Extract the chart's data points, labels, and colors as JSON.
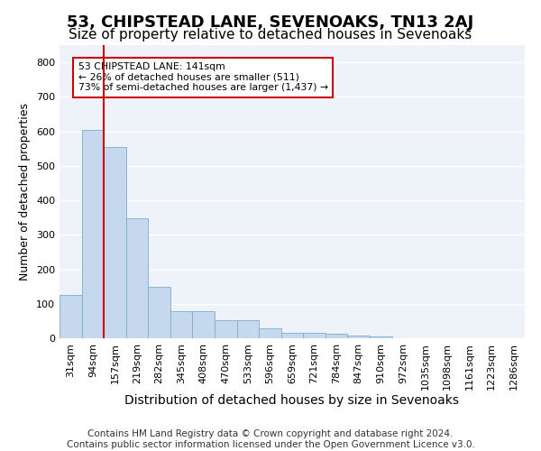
{
  "title": "53, CHIPSTEAD LANE, SEVENOAKS, TN13 2AJ",
  "subtitle": "Size of property relative to detached houses in Sevenoaks",
  "xlabel": "Distribution of detached houses by size in Sevenoaks",
  "ylabel": "Number of detached properties",
  "bar_color": "#c5d8ed",
  "bar_edge_color": "#7aaed0",
  "bar_heights": [
    125,
    605,
    555,
    347,
    148,
    78,
    78,
    52,
    52,
    30,
    15,
    15,
    12,
    8,
    5,
    0,
    0,
    0,
    0,
    0,
    0
  ],
  "categories": [
    "31sqm",
    "94sqm",
    "157sqm",
    "219sqm",
    "282sqm",
    "345sqm",
    "408sqm",
    "470sqm",
    "533sqm",
    "596sqm",
    "659sqm",
    "721sqm",
    "784sqm",
    "847sqm",
    "910sqm",
    "972sqm",
    "1035sqm",
    "1098sqm",
    "1161sqm",
    "1223sqm",
    "1286sqm"
  ],
  "ylim": [
    0,
    850
  ],
  "yticks": [
    0,
    100,
    200,
    300,
    400,
    500,
    600,
    700,
    800
  ],
  "vline_bar_index": 1,
  "vline_color": "#cc0000",
  "annotation_text": "53 CHIPSTEAD LANE: 141sqm\n← 26% of detached houses are smaller (511)\n73% of semi-detached houses are larger (1,437) →",
  "box_color": "white",
  "box_edge_color": "#cc0000",
  "footer": "Contains HM Land Registry data © Crown copyright and database right 2024.\nContains public sector information licensed under the Open Government Licence v3.0.",
  "bg_color": "#eef3f9",
  "title_fontsize": 13,
  "subtitle_fontsize": 11,
  "xlabel_fontsize": 10,
  "ylabel_fontsize": 9,
  "tick_fontsize": 8,
  "footer_fontsize": 7.5
}
